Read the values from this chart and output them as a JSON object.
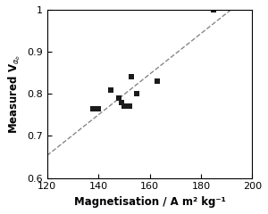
{
  "x_data": [
    138,
    140,
    145,
    148,
    149,
    150,
    152,
    153,
    155,
    163,
    185
  ],
  "y_data": [
    0.765,
    0.765,
    0.81,
    0.79,
    0.78,
    0.77,
    0.77,
    0.84,
    0.8,
    0.83,
    1.0
  ],
  "marker": "s",
  "marker_color": "#1a1a1a",
  "marker_size": 4.5,
  "line_color": "#888888",
  "line_style": "--",
  "line_width": 1.0,
  "xlabel": "Magnetisation / A m² kg⁻¹",
  "ylabel": "Measured V$_{α_b}$",
  "xlim": [
    120,
    200
  ],
  "ylim": [
    0.6,
    1.0
  ],
  "xticks": [
    120,
    140,
    160,
    180,
    200
  ],
  "yticks": [
    0.6,
    0.7,
    0.8,
    0.9,
    1.0
  ],
  "ytick_labels": [
    "0.6",
    "0.7",
    "0.8",
    "0.9",
    "1"
  ],
  "xlabel_fontsize": 8.5,
  "ylabel_fontsize": 8.5,
  "tick_fontsize": 8,
  "background_color": "#ffffff"
}
